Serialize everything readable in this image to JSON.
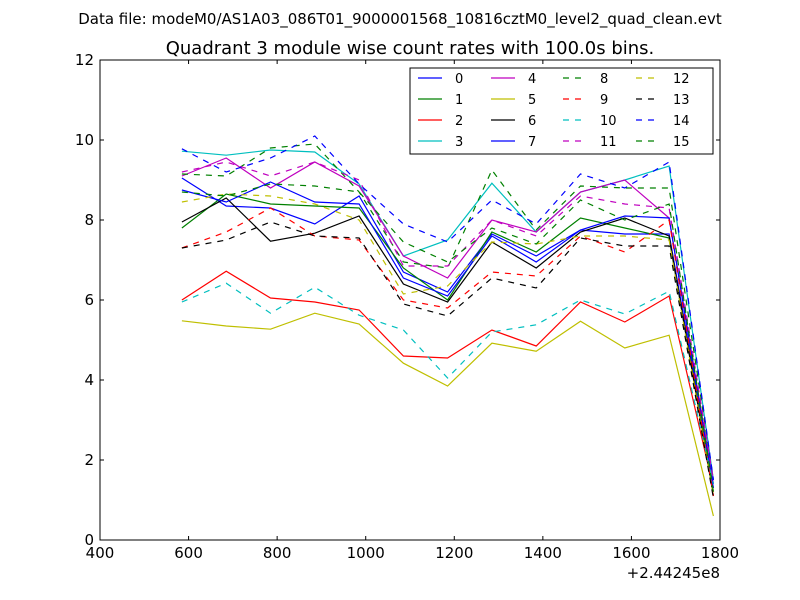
{
  "chart_data": {
    "type": "line",
    "suptitle": "Data file: modeM0/AS1A03_086T01_9000001568_10816cztM0_level2_quad_clean.evt",
    "title": "Quadrant 3 module wise count rates with 100.0s bins.",
    "xlabel": "",
    "ylabel": "",
    "x_offset_label": "+2.44245e8",
    "xlim": [
      400,
      1800
    ],
    "ylim": [
      0,
      12
    ],
    "xticks": [
      400,
      600,
      800,
      1000,
      1200,
      1400,
      1600,
      1800
    ],
    "yticks": [
      0,
      2,
      4,
      6,
      8,
      10,
      12
    ],
    "xtick_labels": [
      "400",
      "600",
      "800",
      "1000",
      "1200",
      "1400",
      "1600",
      "1800"
    ],
    "ytick_labels": [
      "0",
      "2",
      "4",
      "6",
      "8",
      "10",
      "12"
    ],
    "legend_position": "top-right",
    "x": [
      585,
      685,
      785,
      885,
      985,
      1085,
      1185,
      1285,
      1385,
      1485,
      1585,
      1685,
      1785
    ],
    "series": [
      {
        "name": "0",
        "color": "#0000ff",
        "dash": "solid",
        "values": [
          9.05,
          8.35,
          8.3,
          7.9,
          8.6,
          6.7,
          6.2,
          7.65,
          7.1,
          7.75,
          7.65,
          7.65,
          1.4
        ]
      },
      {
        "name": "1",
        "color": "#008000",
        "dash": "solid",
        "values": [
          7.8,
          8.65,
          8.4,
          8.35,
          8.3,
          6.8,
          6.0,
          7.7,
          7.2,
          8.05,
          7.8,
          7.55,
          1.2
        ]
      },
      {
        "name": "2",
        "color": "#ff0000",
        "dash": "solid",
        "values": [
          6.0,
          6.72,
          6.05,
          5.95,
          5.75,
          4.6,
          4.55,
          5.25,
          4.85,
          5.95,
          5.45,
          6.1,
          1.3
        ]
      },
      {
        "name": "3",
        "color": "#00bfbf",
        "dash": "solid",
        "values": [
          9.72,
          9.62,
          9.75,
          9.7,
          8.9,
          7.1,
          7.5,
          8.92,
          7.7,
          8.7,
          9.0,
          9.35,
          1.5
        ]
      },
      {
        "name": "4",
        "color": "#bf00bf",
        "dash": "solid",
        "values": [
          9.1,
          9.55,
          8.8,
          9.45,
          8.85,
          7.1,
          6.55,
          8.0,
          7.7,
          8.7,
          9.0,
          8.05,
          1.4
        ]
      },
      {
        "name": "5",
        "color": "#bfbf00",
        "dash": "solid",
        "values": [
          5.48,
          5.35,
          5.27,
          5.67,
          5.4,
          4.42,
          3.85,
          4.92,
          4.72,
          5.47,
          4.8,
          5.12,
          0.6
        ]
      },
      {
        "name": "6",
        "color": "#000000",
        "dash": "solid",
        "values": [
          7.95,
          8.55,
          7.47,
          7.67,
          8.1,
          6.4,
          5.95,
          7.45,
          6.8,
          7.7,
          8.05,
          7.6,
          1.1
        ]
      },
      {
        "name": "7",
        "color": "#0000ff",
        "dash": "solid",
        "values": [
          8.75,
          8.45,
          8.95,
          8.45,
          8.4,
          6.55,
          6.1,
          7.6,
          6.95,
          7.75,
          8.1,
          8.05,
          1.3
        ]
      },
      {
        "name": "8",
        "color": "#008000",
        "dash": "dashed",
        "values": [
          9.15,
          9.1,
          9.8,
          9.9,
          8.7,
          6.95,
          6.8,
          9.25,
          7.75,
          8.85,
          8.8,
          8.8,
          1.5
        ]
      },
      {
        "name": "9",
        "color": "#ff0000",
        "dash": "dashed",
        "values": [
          7.3,
          7.7,
          8.3,
          7.6,
          7.5,
          6.0,
          5.8,
          6.7,
          6.6,
          7.6,
          7.2,
          8.0,
          1.1
        ]
      },
      {
        "name": "10",
        "color": "#00bfbf",
        "dash": "dashed",
        "values": [
          5.95,
          6.42,
          5.67,
          6.32,
          5.62,
          5.25,
          4.05,
          5.2,
          5.38,
          6.0,
          5.65,
          6.22,
          1.4
        ]
      },
      {
        "name": "11",
        "color": "#bf00bf",
        "dash": "dashed",
        "values": [
          9.2,
          9.45,
          9.1,
          9.45,
          9.0,
          6.85,
          6.85,
          8.0,
          7.6,
          8.6,
          8.4,
          8.3,
          1.5
        ]
      },
      {
        "name": "12",
        "color": "#bfbf00",
        "dash": "dashed",
        "values": [
          8.45,
          8.65,
          8.6,
          8.4,
          8.0,
          6.15,
          6.35,
          7.45,
          7.4,
          7.6,
          7.6,
          7.5,
          1.1
        ]
      },
      {
        "name": "13",
        "color": "#000000",
        "dash": "dashed",
        "values": [
          7.3,
          7.5,
          7.95,
          7.6,
          7.55,
          5.9,
          5.6,
          6.55,
          6.3,
          7.55,
          7.35,
          7.35,
          1.05
        ]
      },
      {
        "name": "14",
        "color": "#0000ff",
        "dash": "dashed",
        "values": [
          9.78,
          9.2,
          9.55,
          10.1,
          8.9,
          7.9,
          7.45,
          8.5,
          7.9,
          9.15,
          8.8,
          9.45,
          1.5
        ]
      },
      {
        "name": "15",
        "color": "#008000",
        "dash": "dashed",
        "values": [
          8.7,
          8.6,
          8.9,
          8.85,
          8.7,
          7.45,
          6.95,
          7.8,
          7.4,
          8.5,
          8.0,
          8.4,
          1.2
        ]
      }
    ]
  }
}
